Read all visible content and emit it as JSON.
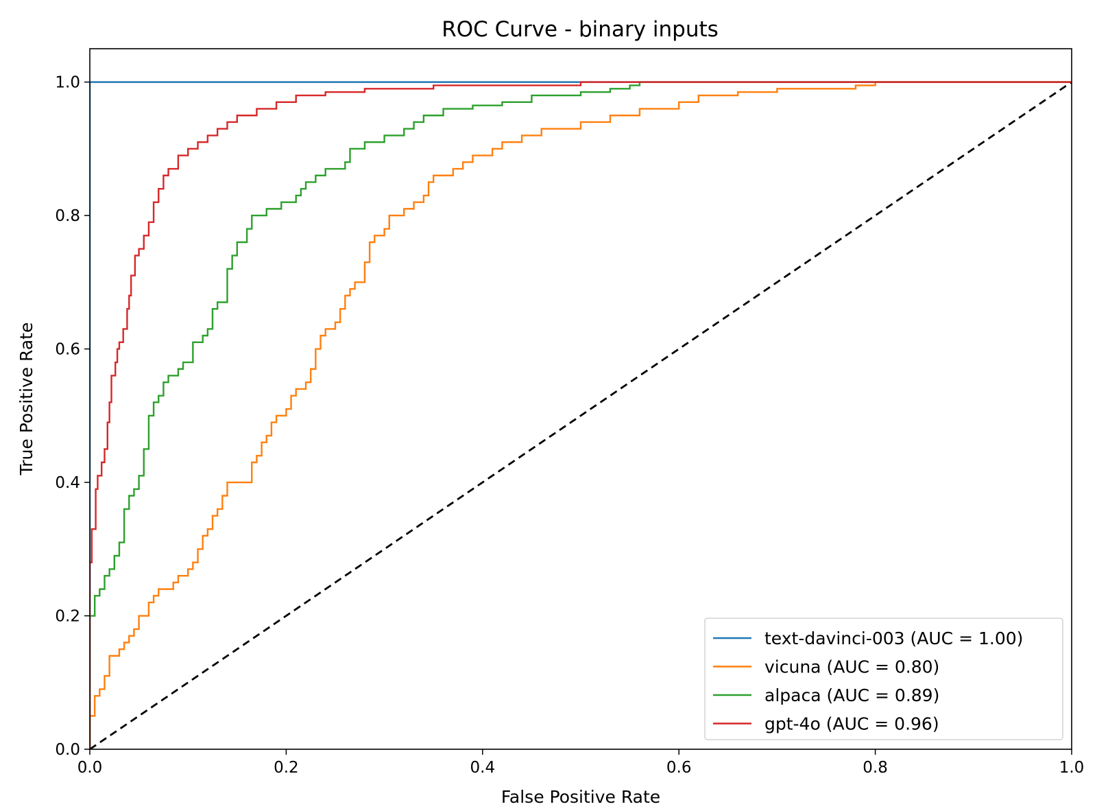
{
  "chart_data": {
    "type": "line",
    "title": "ROC Curve - binary inputs",
    "xlabel": "False Positive Rate",
    "ylabel": "True Positive Rate",
    "xlim": [
      0.0,
      1.0
    ],
    "ylim": [
      0.0,
      1.05
    ],
    "xticks": [
      "0.0",
      "0.2",
      "0.4",
      "0.6",
      "0.8",
      "1.0"
    ],
    "yticks": [
      "0.0",
      "0.2",
      "0.4",
      "0.6",
      "0.8",
      "1.0"
    ],
    "grid": false,
    "legend_position": "lower-right",
    "series": [
      {
        "name": "text-davinci-003 (AUC = 1.00)",
        "color": "#1f77b4",
        "step": true,
        "points": [
          [
            0,
            0
          ],
          [
            0,
            1.0
          ],
          [
            1.0,
            1.0
          ]
        ]
      },
      {
        "name": "vicuna (AUC = 0.80)",
        "color": "#ff7f0e",
        "step": true,
        "points": [
          [
            0,
            0
          ],
          [
            0,
            0.05
          ],
          [
            0.005,
            0.08
          ],
          [
            0.01,
            0.09
          ],
          [
            0.015,
            0.11
          ],
          [
            0.02,
            0.14
          ],
          [
            0.03,
            0.15
          ],
          [
            0.035,
            0.16
          ],
          [
            0.04,
            0.17
          ],
          [
            0.045,
            0.18
          ],
          [
            0.05,
            0.2
          ],
          [
            0.055,
            0.2
          ],
          [
            0.06,
            0.22
          ],
          [
            0.065,
            0.23
          ],
          [
            0.07,
            0.24
          ],
          [
            0.08,
            0.24
          ],
          [
            0.085,
            0.25
          ],
          [
            0.09,
            0.26
          ],
          [
            0.1,
            0.27
          ],
          [
            0.105,
            0.28
          ],
          [
            0.11,
            0.3
          ],
          [
            0.115,
            0.32
          ],
          [
            0.12,
            0.33
          ],
          [
            0.125,
            0.35
          ],
          [
            0.13,
            0.36
          ],
          [
            0.135,
            0.38
          ],
          [
            0.14,
            0.4
          ],
          [
            0.16,
            0.4
          ],
          [
            0.165,
            0.43
          ],
          [
            0.17,
            0.44
          ],
          [
            0.175,
            0.46
          ],
          [
            0.18,
            0.47
          ],
          [
            0.185,
            0.49
          ],
          [
            0.19,
            0.5
          ],
          [
            0.2,
            0.51
          ],
          [
            0.205,
            0.53
          ],
          [
            0.21,
            0.54
          ],
          [
            0.22,
            0.55
          ],
          [
            0.225,
            0.57
          ],
          [
            0.23,
            0.6
          ],
          [
            0.235,
            0.62
          ],
          [
            0.24,
            0.63
          ],
          [
            0.25,
            0.64
          ],
          [
            0.255,
            0.66
          ],
          [
            0.26,
            0.68
          ],
          [
            0.265,
            0.69
          ],
          [
            0.27,
            0.7
          ],
          [
            0.28,
            0.73
          ],
          [
            0.285,
            0.76
          ],
          [
            0.29,
            0.77
          ],
          [
            0.3,
            0.78
          ],
          [
            0.305,
            0.8
          ],
          [
            0.32,
            0.81
          ],
          [
            0.33,
            0.82
          ],
          [
            0.34,
            0.83
          ],
          [
            0.345,
            0.85
          ],
          [
            0.35,
            0.86
          ],
          [
            0.37,
            0.87
          ],
          [
            0.38,
            0.88
          ],
          [
            0.39,
            0.89
          ],
          [
            0.41,
            0.9
          ],
          [
            0.42,
            0.91
          ],
          [
            0.44,
            0.92
          ],
          [
            0.46,
            0.93
          ],
          [
            0.5,
            0.94
          ],
          [
            0.53,
            0.95
          ],
          [
            0.56,
            0.96
          ],
          [
            0.6,
            0.97
          ],
          [
            0.62,
            0.98
          ],
          [
            0.66,
            0.985
          ],
          [
            0.7,
            0.99
          ],
          [
            0.78,
            0.995
          ],
          [
            0.8,
            1.0
          ],
          [
            1.0,
            1.0
          ]
        ]
      },
      {
        "name": "alpaca (AUC = 0.89)",
        "color": "#2ca02c",
        "step": true,
        "points": [
          [
            0,
            0
          ],
          [
            0,
            0.2
          ],
          [
            0.005,
            0.23
          ],
          [
            0.01,
            0.24
          ],
          [
            0.015,
            0.26
          ],
          [
            0.02,
            0.27
          ],
          [
            0.025,
            0.29
          ],
          [
            0.03,
            0.31
          ],
          [
            0.035,
            0.36
          ],
          [
            0.04,
            0.38
          ],
          [
            0.045,
            0.39
          ],
          [
            0.05,
            0.41
          ],
          [
            0.055,
            0.45
          ],
          [
            0.06,
            0.5
          ],
          [
            0.065,
            0.52
          ],
          [
            0.07,
            0.53
          ],
          [
            0.075,
            0.55
          ],
          [
            0.08,
            0.56
          ],
          [
            0.09,
            0.57
          ],
          [
            0.095,
            0.58
          ],
          [
            0.105,
            0.61
          ],
          [
            0.115,
            0.62
          ],
          [
            0.12,
            0.63
          ],
          [
            0.125,
            0.66
          ],
          [
            0.13,
            0.67
          ],
          [
            0.14,
            0.72
          ],
          [
            0.145,
            0.74
          ],
          [
            0.15,
            0.76
          ],
          [
            0.16,
            0.78
          ],
          [
            0.165,
            0.8
          ],
          [
            0.18,
            0.81
          ],
          [
            0.195,
            0.82
          ],
          [
            0.21,
            0.83
          ],
          [
            0.215,
            0.84
          ],
          [
            0.22,
            0.85
          ],
          [
            0.23,
            0.86
          ],
          [
            0.24,
            0.87
          ],
          [
            0.26,
            0.88
          ],
          [
            0.265,
            0.9
          ],
          [
            0.28,
            0.91
          ],
          [
            0.3,
            0.92
          ],
          [
            0.32,
            0.93
          ],
          [
            0.33,
            0.94
          ],
          [
            0.34,
            0.95
          ],
          [
            0.36,
            0.96
          ],
          [
            0.39,
            0.965
          ],
          [
            0.42,
            0.97
          ],
          [
            0.45,
            0.98
          ],
          [
            0.5,
            0.985
          ],
          [
            0.53,
            0.99
          ],
          [
            0.55,
            0.995
          ],
          [
            0.56,
            1.0
          ],
          [
            1.0,
            1.0
          ]
        ]
      },
      {
        "name": "gpt-4o (AUC = 0.96)",
        "color": "#d62728",
        "step": true,
        "points": [
          [
            0,
            0
          ],
          [
            0,
            0.28
          ],
          [
            0.002,
            0.33
          ],
          [
            0.006,
            0.39
          ],
          [
            0.008,
            0.41
          ],
          [
            0.012,
            0.43
          ],
          [
            0.015,
            0.45
          ],
          [
            0.018,
            0.49
          ],
          [
            0.02,
            0.52
          ],
          [
            0.022,
            0.56
          ],
          [
            0.026,
            0.58
          ],
          [
            0.028,
            0.6
          ],
          [
            0.03,
            0.61
          ],
          [
            0.034,
            0.63
          ],
          [
            0.038,
            0.66
          ],
          [
            0.04,
            0.68
          ],
          [
            0.042,
            0.71
          ],
          [
            0.046,
            0.74
          ],
          [
            0.05,
            0.75
          ],
          [
            0.055,
            0.77
          ],
          [
            0.06,
            0.79
          ],
          [
            0.065,
            0.82
          ],
          [
            0.07,
            0.84
          ],
          [
            0.075,
            0.86
          ],
          [
            0.08,
            0.87
          ],
          [
            0.09,
            0.89
          ],
          [
            0.1,
            0.9
          ],
          [
            0.11,
            0.91
          ],
          [
            0.12,
            0.92
          ],
          [
            0.13,
            0.93
          ],
          [
            0.14,
            0.94
          ],
          [
            0.15,
            0.95
          ],
          [
            0.17,
            0.96
          ],
          [
            0.19,
            0.97
          ],
          [
            0.21,
            0.98
          ],
          [
            0.24,
            0.985
          ],
          [
            0.28,
            0.99
          ],
          [
            0.35,
            0.995
          ],
          [
            0.5,
            1.0
          ],
          [
            1.0,
            1.0
          ]
        ]
      }
    ],
    "reference_line": {
      "points": [
        [
          0,
          0
        ],
        [
          1,
          1
        ]
      ],
      "color": "#000000",
      "style": "dashed"
    }
  }
}
